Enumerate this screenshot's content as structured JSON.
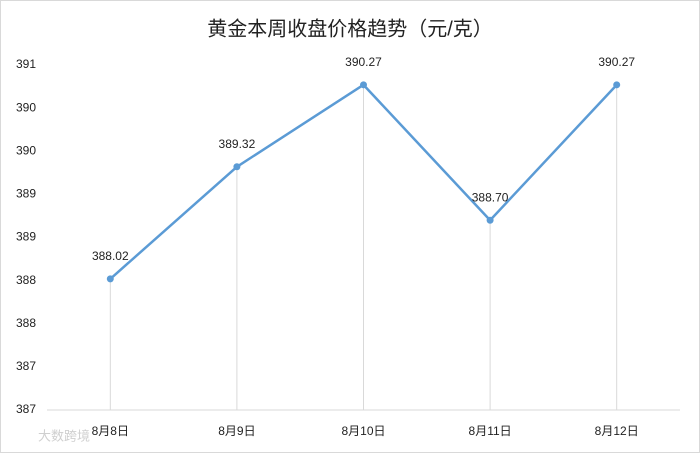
{
  "chart_data": {
    "type": "line",
    "title": "黄金本周收盘价格趋势（元/克）",
    "categories": [
      "8月8日",
      "8月9日",
      "8月10日",
      "8月11日",
      "8月12日"
    ],
    "values": [
      388.02,
      389.32,
      390.27,
      388.7,
      390.27
    ],
    "value_labels": [
      "388.02",
      "389.32",
      "390.27",
      "388.70",
      "390.27"
    ],
    "color": "#5b9bd5",
    "ylim": [
      386.5,
      390.5
    ],
    "yticks": [
      {
        "value": 386.5,
        "label": "387"
      },
      387,
      {
        "value": 387.5,
        "label": "388"
      },
      388,
      {
        "value": 388.5,
        "label": "389"
      },
      389,
      {
        "value": 389.5,
        "label": "390"
      },
      390,
      {
        "value": 390.5,
        "label": "391"
      }
    ],
    "watermark": "大数跨境"
  }
}
